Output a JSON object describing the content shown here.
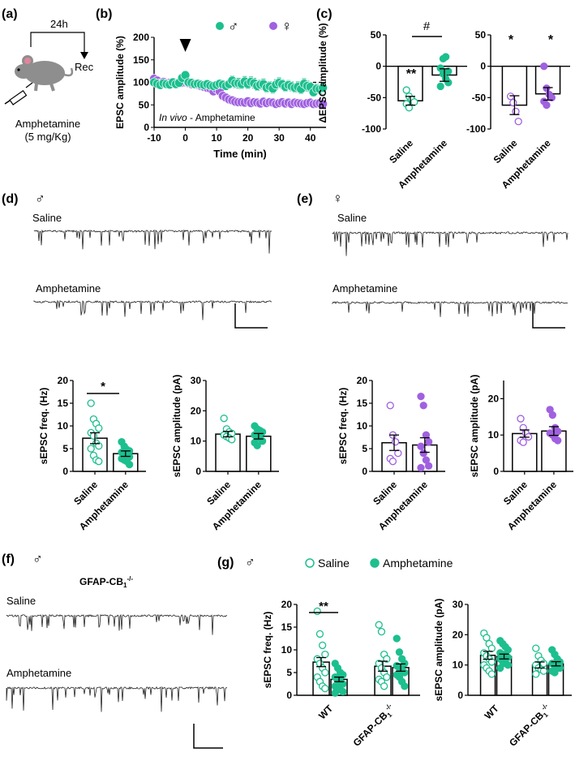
{
  "panel_labels": {
    "a": "(a)",
    "b": "(b)",
    "c": "(c)",
    "d": "(d)",
    "e": "(e)",
    "f": "(f)",
    "g": "(g)"
  },
  "colors": {
    "male": "#1dbf8e",
    "female": "#a061e0",
    "axis": "#000000"
  },
  "symbols": {
    "male": "♂",
    "female": "♀"
  },
  "panel_a": {
    "time": "24h",
    "rec": "Rec",
    "drug": "Amphetamine",
    "dose": "(5 mg/Kg)"
  },
  "panel_c": {
    "ylabel": "ΔEPSC amplitude (%)",
    "sig_male": [
      "**",
      "#"
    ],
    "sig_female": [
      "*",
      "*"
    ]
  },
  "panel_d": {
    "trace_top": "Saline",
    "trace_bottom": "Amphetamine",
    "sig": "*"
  },
  "panel_e": {
    "trace_top": "Saline",
    "trace_bottom": "Amphetamine"
  },
  "panel_f": {
    "genotype": "GFAP-CB",
    "genotype_sub": "1",
    "genotype_sup": "-/-",
    "trace_top": "Saline",
    "trace_bottom": "Amphetamine"
  },
  "panel_g": {
    "legend": [
      "Saline",
      "Amphetamine"
    ],
    "sig": "**"
  },
  "chart_data": [
    {
      "id": "b",
      "type": "scatter",
      "xlabel": "Time (min)",
      "ylabel": "EPSC amplitude (%)",
      "annotation_italic": "In vivo",
      "annotation": " - Amphetamine",
      "xticks": [
        -10,
        0,
        10,
        20,
        30,
        40
      ],
      "yticks": [
        0,
        50,
        100,
        150,
        200
      ],
      "xlim": [
        -10,
        45
      ],
      "ylim": [
        0,
        200
      ],
      "baseline": 100,
      "arrow_at": 0,
      "series": [
        {
          "name": "♂",
          "color": "#1dbf8e",
          "x": [
            -10,
            -9,
            -8,
            -7,
            -6,
            -5,
            -4,
            -3,
            -2,
            -1,
            0,
            1,
            2,
            3,
            4,
            5,
            6,
            7,
            8,
            9,
            10,
            11,
            12,
            13,
            14,
            15,
            16,
            17,
            18,
            19,
            20,
            21,
            22,
            23,
            24,
            25,
            26,
            27,
            28,
            29,
            30,
            31,
            32,
            33,
            34,
            35,
            36,
            37,
            38,
            39,
            40,
            41,
            42,
            43,
            44
          ],
          "y": [
            100,
            97,
            94,
            98,
            96,
            95,
            100,
            96,
            99,
            110,
            116,
            100,
            99,
            96,
            97,
            95,
            94,
            96,
            93,
            92,
            94,
            97,
            95,
            92,
            96,
            104,
            98,
            98,
            96,
            102,
            96,
            101,
            98,
            92,
            95,
            96,
            88,
            91,
            86,
            95,
            99,
            96,
            90,
            94,
            91,
            88,
            90,
            85,
            97,
            92,
            90,
            78,
            86,
            85,
            88
          ],
          "err": [
            4,
            4,
            4,
            4,
            4,
            4,
            4,
            4,
            5,
            8,
            9,
            5,
            4,
            4,
            4,
            4,
            5,
            5,
            6,
            6,
            6,
            7,
            7,
            8,
            8,
            10,
            10,
            11,
            10,
            11,
            10,
            11,
            11,
            10,
            10,
            11,
            10,
            10,
            10,
            11,
            11,
            10,
            10,
            10,
            10,
            10,
            11,
            10,
            11,
            11,
            10,
            9,
            10,
            10,
            10
          ]
        },
        {
          "name": "♀",
          "color": "#a061e0",
          "x": [
            -10,
            -9,
            -8,
            -7,
            -6,
            -5,
            -4,
            -3,
            -2,
            -1,
            0,
            1,
            2,
            3,
            4,
            5,
            6,
            7,
            8,
            9,
            10,
            11,
            12,
            13,
            14,
            15,
            16,
            17,
            18,
            19,
            20,
            21,
            22,
            23,
            24,
            25,
            26,
            27,
            28,
            29,
            30,
            31,
            32,
            33,
            34,
            35,
            36,
            37,
            38,
            39,
            40,
            41,
            42,
            43,
            44
          ],
          "y": [
            108,
            104,
            98,
            101,
            95,
            99,
            100,
            95,
            100,
            99,
            100,
            98,
            96,
            97,
            94,
            92,
            90,
            88,
            86,
            80,
            85,
            80,
            70,
            66,
            62,
            60,
            57,
            56,
            56,
            55,
            58,
            54,
            56,
            55,
            53,
            57,
            54,
            56,
            55,
            52,
            54,
            56,
            53,
            55,
            52,
            55,
            54,
            53,
            52,
            54,
            55,
            52,
            53,
            54,
            52
          ],
          "err": [
            6,
            6,
            5,
            5,
            5,
            5,
            5,
            5,
            5,
            5,
            5,
            5,
            5,
            5,
            5,
            5,
            6,
            6,
            6,
            6,
            7,
            7,
            8,
            8,
            8,
            8,
            8,
            8,
            8,
            8,
            8,
            8,
            8,
            8,
            8,
            8,
            8,
            8,
            8,
            8,
            8,
            8,
            8,
            8,
            8,
            8,
            8,
            8,
            8,
            8,
            8,
            8,
            8,
            8,
            8
          ]
        }
      ]
    },
    {
      "id": "c-male",
      "type": "bar",
      "categories": [
        "Saline",
        "Amphetamine"
      ],
      "values": [
        -55,
        -14
      ],
      "errors": [
        7,
        10
      ],
      "points": [
        [
          -38,
          -48,
          -53,
          -57,
          -60,
          -66
        ],
        [
          -3,
          -12,
          -20,
          -26,
          -32,
          12,
          15,
          -8
        ]
      ],
      "ylim": [
        -100,
        50
      ],
      "yticks": [
        50,
        0,
        -50,
        -100
      ]
    },
    {
      "id": "c-female",
      "type": "bar",
      "categories": [
        "Saline",
        "Amphetamine"
      ],
      "values": [
        -62,
        -44
      ],
      "errors": [
        15,
        10
      ],
      "points": [
        [
          -48,
          -58,
          -72,
          -88
        ],
        [
          0,
          -35,
          -45,
          -50,
          -56,
          -62
        ]
      ],
      "ylim": [
        -100,
        50
      ],
      "yticks": [
        50,
        0,
        -50,
        -100
      ]
    },
    {
      "id": "d-freq",
      "type": "bar",
      "ylabel": "sEPSC freq. (Hz)",
      "categories": [
        "Saline",
        "Amphetamine"
      ],
      "values": [
        7.3,
        3.9
      ],
      "errors": [
        1.2,
        0.6
      ],
      "points": [
        [
          15,
          11.5,
          10.5,
          9.5,
          8.5,
          7.8,
          6.2,
          5.6,
          5,
          3.5,
          2.5,
          2.2
        ],
        [
          6.5,
          5.5,
          4.8,
          4.5,
          4.2,
          3.8,
          3.5,
          3.2,
          2.8,
          2.5,
          2.2,
          1.5
        ]
      ],
      "ylim": [
        0,
        20
      ],
      "yticks": [
        0,
        5,
        10,
        15,
        20
      ]
    },
    {
      "id": "d-amp",
      "type": "bar",
      "ylabel": "sEPSC amplitude (pA)",
      "categories": [
        "Saline",
        "Amphetamine"
      ],
      "values": [
        12.3,
        11.6
      ],
      "errors": [
        0.9,
        0.9
      ],
      "points": [
        [
          17.5,
          14,
          13,
          12.5,
          12,
          11.5,
          11,
          10.5
        ],
        [
          15,
          14,
          13.5,
          13,
          12,
          11.5,
          11,
          10,
          9.5,
          8.5
        ]
      ],
      "ylim": [
        0,
        30
      ],
      "yticks": [
        0,
        10,
        20,
        30
      ]
    },
    {
      "id": "e-freq",
      "type": "bar",
      "ylabel": "sEPSC freq. (Hz)",
      "categories": [
        "Saline",
        "Amphetamine"
      ],
      "values": [
        6.3,
        5.8
      ],
      "errors": [
        1.7,
        1.6
      ],
      "points": [
        [
          14.5,
          8,
          6.5,
          4,
          2.8,
          2.2
        ],
        [
          16.5,
          14.5,
          8,
          6.5,
          5.5,
          4,
          2.5,
          1.2,
          0.8
        ]
      ],
      "ylim": [
        0,
        20
      ],
      "yticks": [
        0,
        5,
        10,
        15,
        20
      ]
    },
    {
      "id": "e-amp",
      "type": "bar",
      "ylabel": "sEPSC amplitude (pA)",
      "categories": [
        "Saline",
        "Amphetamine"
      ],
      "values": [
        10.4,
        11.1
      ],
      "errors": [
        1.0,
        1.2
      ],
      "points": [
        [
          14.5,
          12,
          10.5,
          9.5,
          8.5,
          8
        ],
        [
          17,
          15.5,
          12,
          11,
          10.5,
          10,
          9,
          8.5
        ]
      ],
      "ylim": [
        0,
        25
      ],
      "yticks": [
        0,
        10,
        20
      ]
    },
    {
      "id": "g-freq",
      "type": "bar",
      "ylabel": "sEPSC freq. (Hz)",
      "categories": [
        "WT",
        "GFAP-CB1-/-"
      ],
      "series": [
        {
          "name": "Saline",
          "values": [
            7.3,
            6.4
          ],
          "errors": [
            1.0,
            1.1
          ],
          "points": [
            [
              18.5,
              13.5,
              11,
              9,
              8,
              7,
              6,
              5,
              4,
              3,
              2,
              1.5
            ],
            [
              15.5,
              14,
              9,
              8,
              7,
              6,
              5,
              4,
              3.5,
              3,
              2
            ]
          ]
        },
        {
          "name": "Amphetamine",
          "values": [
            3.5,
            6.1
          ],
          "errors": [
            0.5,
            0.8
          ],
          "points": [
            [
              7,
              6,
              5,
              4.5,
              4,
              3.5,
              3,
              2.5,
              2,
              1.5,
              1.2,
              0.8,
              0.5
            ],
            [
              12.5,
              9.5,
              8,
              7,
              6.5,
              6,
              5.5,
              5,
              4.5,
              4,
              3,
              2
            ]
          ]
        }
      ],
      "ylim": [
        0,
        20
      ],
      "yticks": [
        0,
        5,
        10,
        15,
        20
      ]
    },
    {
      "id": "g-amp",
      "type": "bar",
      "ylabel": "sEPSC amplitude (pA)",
      "categories": [
        "WT",
        "GFAP-CB1-/-"
      ],
      "series": [
        {
          "name": "Saline",
          "values": [
            13.2,
            10.0
          ],
          "errors": [
            1.3,
            1.0
          ],
          "points": [
            [
              20.5,
              19,
              17,
              15.5,
              14,
              13,
              12,
              11,
              10,
              9,
              8,
              7
            ],
            [
              15.5,
              13,
              11.5,
              10.5,
              10,
              9,
              8.5,
              8,
              7
            ]
          ]
        },
        {
          "name": "Amphetamine",
          "values": [
            12.8,
            10.4
          ],
          "errors": [
            0.8,
            0.7
          ],
          "points": [
            [
              18,
              17,
              16,
              15,
              14,
              13.5,
              13,
              12.5,
              12,
              11,
              10.5,
              10,
              9
            ],
            [
              15,
              13.5,
              12,
              11,
              10.5,
              10,
              9.5,
              9,
              8,
              7.5
            ]
          ]
        }
      ],
      "ylim": [
        0,
        30
      ],
      "yticks": [
        0,
        10,
        20,
        30
      ]
    }
  ]
}
